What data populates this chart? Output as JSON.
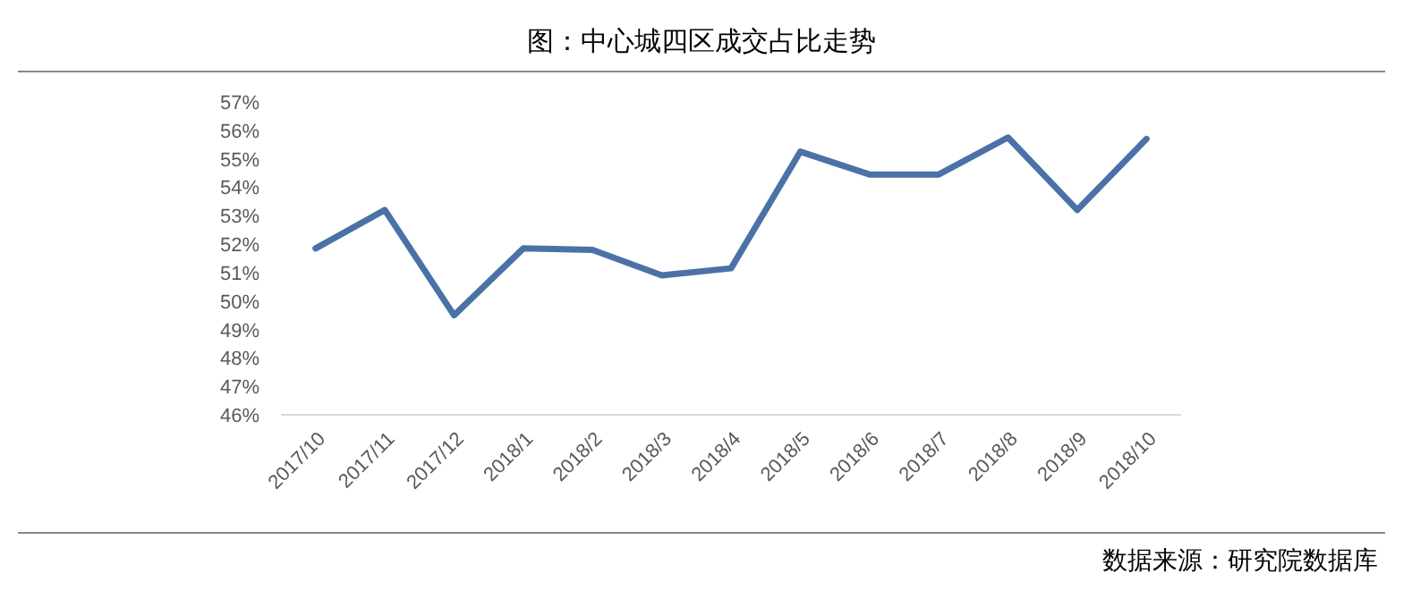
{
  "chart_data": {
    "type": "line",
    "title": "图：中心城四区成交占比走势",
    "categories": [
      "2017/10",
      "2017/11",
      "2017/12",
      "2018/1",
      "2018/2",
      "2018/3",
      "2018/4",
      "2018/5",
      "2018/6",
      "2018/7",
      "2018/8",
      "2018/9",
      "2018/10"
    ],
    "series": [
      {
        "color": "#4a72a6",
        "values": [
          51.85,
          53.2,
          49.5,
          51.85,
          51.8,
          50.9,
          51.15,
          55.25,
          54.45,
          54.45,
          55.75,
          53.2,
          55.7
        ]
      }
    ],
    "ylim": [
      46,
      57
    ],
    "yticks": [
      {
        "value": 46,
        "label": "46%"
      },
      {
        "value": 47,
        "label": "47%"
      },
      {
        "value": 48,
        "label": "48%"
      },
      {
        "value": 49,
        "label": "49%"
      },
      {
        "value": 50,
        "label": "50%"
      },
      {
        "value": 51,
        "label": "51%"
      },
      {
        "value": 52,
        "label": "52%"
      },
      {
        "value": 53,
        "label": "53%"
      },
      {
        "value": 54,
        "label": "54%"
      },
      {
        "value": 55,
        "label": "55%"
      },
      {
        "value": 56,
        "label": "56%"
      },
      {
        "value": 57,
        "label": "57%"
      }
    ],
    "grid": false,
    "marker": "none",
    "line_style": "solid",
    "annotations": [
      "数据来源：研究院数据库"
    ]
  }
}
